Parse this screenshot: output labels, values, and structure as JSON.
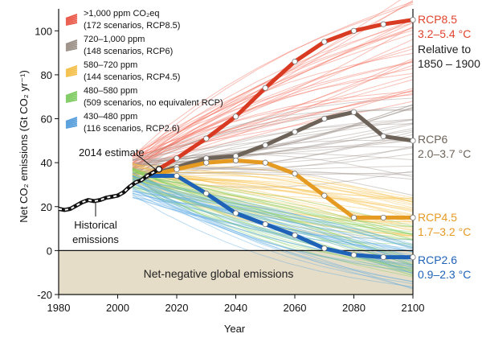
{
  "chart_data": {
    "type": "line",
    "xlabel": "Year",
    "ylabel": "Net CO₂ emissions (Gt CO₂ yr⁻¹)",
    "xlim": [
      1980,
      2100
    ],
    "ylim": [
      -20,
      110
    ],
    "xticks": [
      1980,
      2000,
      2020,
      2040,
      2060,
      2080,
      2100
    ],
    "yticks": [
      -20,
      0,
      20,
      40,
      60,
      80,
      100
    ],
    "grid": false,
    "legend": [
      {
        "line1": ">1,000 ppm CO₂eq",
        "line2": "(172 scenarios, RCP8.5)",
        "color": "#e8412f"
      },
      {
        "line1": "720–1,000 ppm",
        "line2": "(148 scenarios, RCP6)",
        "color": "#8c8076"
      },
      {
        "line1": "580–720 ppm",
        "line2": "(144 scenarios, RCP4.5)",
        "color": "#f2b630"
      },
      {
        "line1": "480–580 ppm",
        "line2": "(509 scenarios, no equivalent RCP)",
        "color": "#6cc34b"
      },
      {
        "line1": "430–480 ppm",
        "line2": "(116 scenarios, RCP2.6)",
        "color": "#3c8fd6"
      }
    ],
    "historical": {
      "x": [
        1980,
        1982,
        1984,
        1986,
        1988,
        1990,
        1992,
        1994,
        1996,
        1998,
        2000,
        2002,
        2004,
        2006,
        2008,
        2010,
        2012,
        2014
      ],
      "y": [
        19,
        18.5,
        19,
        20.5,
        22,
        23,
        22.5,
        23,
        24,
        24.5,
        25,
        26.5,
        29,
        31,
        32,
        34,
        35.5,
        37
      ],
      "color": "#111111"
    },
    "series": [
      {
        "name": "RCP8.5",
        "x": [
          2010,
          2020,
          2030,
          2040,
          2050,
          2060,
          2070,
          2080,
          2090,
          2100
        ],
        "y": [
          34,
          42,
          51,
          61,
          74,
          86,
          95,
          100,
          103,
          105
        ],
        "color": "#d93a22"
      },
      {
        "name": "RCP6",
        "x": [
          2010,
          2020,
          2030,
          2040,
          2050,
          2060,
          2070,
          2080,
          2090,
          2100
        ],
        "y": [
          34,
          38,
          42,
          43,
          48,
          54,
          60,
          63,
          52,
          50
        ],
        "color": "#6e6358"
      },
      {
        "name": "RCP4.5",
        "x": [
          2010,
          2020,
          2030,
          2040,
          2050,
          2060,
          2070,
          2080,
          2090,
          2100
        ],
        "y": [
          34,
          37,
          40,
          41,
          40,
          35,
          25,
          15,
          15,
          15
        ],
        "color": "#e59a22"
      },
      {
        "name": "RCP2.6",
        "x": [
          2010,
          2020,
          2030,
          2040,
          2050,
          2060,
          2070,
          2080,
          2090,
          2100
        ],
        "y": [
          34,
          34,
          26,
          17,
          12,
          7,
          1,
          -2,
          -3,
          -3
        ],
        "color": "#1f63b8"
      }
    ],
    "scenario_bands": [
      {
        "color": "#f36a55",
        "start": [
          34,
          44
        ],
        "end": [
          65,
          118
        ]
      },
      {
        "color": "#9e928a",
        "start": [
          33,
          42
        ],
        "end": [
          25,
          70
        ]
      },
      {
        "color": "#f7c24a",
        "start": [
          31,
          40
        ],
        "end": [
          5,
          25
        ]
      },
      {
        "color": "#83cf61",
        "start": [
          28,
          38
        ],
        "end": [
          -12,
          12
        ]
      },
      {
        "color": "#5aa9e3",
        "start": [
          24,
          36
        ],
        "end": [
          -18,
          5
        ]
      }
    ],
    "annotations": {
      "estimate_2014": "2014 estimate",
      "historical_line1": "Historical",
      "historical_line2": "emissions",
      "net_negative": "Net-negative global emissions",
      "rcp85_name": "RCP8.5",
      "rcp85_range": "3.2–5.4 °C",
      "relative_line1": "Relative to",
      "relative_line2": "1850 – 1900",
      "rcp6_name": "RCP6",
      "rcp6_range": "2.0–3.7 °C",
      "rcp45_name": "RCP4.5",
      "rcp45_range": "1.7–3.2 °C",
      "rcp26_name": "RCP2.6",
      "rcp26_range": "0.9–2.3 °C"
    },
    "colors": {
      "negative_region": "#e6ddc8",
      "axis": "#111111",
      "rcp85_text": "#e0432e",
      "rcp6_text": "#6e6358",
      "rcp45_text": "#e59a22",
      "rcp26_text": "#1f63b8"
    }
  }
}
